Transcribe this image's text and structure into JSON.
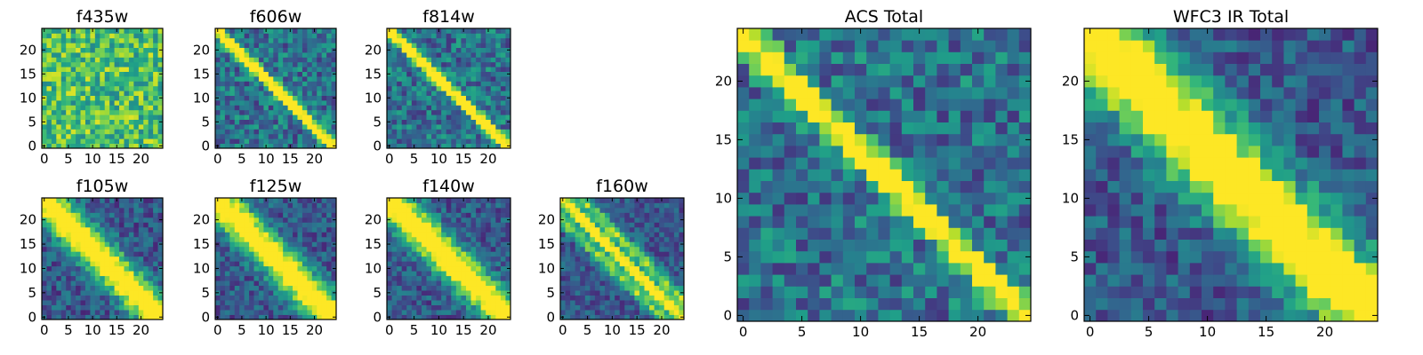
{
  "chart_data": [
    {
      "type": "heatmap",
      "title": "f435w",
      "xticks": [
        0,
        5,
        10,
        15,
        20
      ],
      "yticks": [
        0,
        5,
        10,
        15,
        20
      ],
      "xlim": [
        0,
        25
      ],
      "ylim": [
        0,
        25
      ],
      "colormap": "viridis",
      "pattern": "noise"
    },
    {
      "type": "heatmap",
      "title": "f606w",
      "xticks": [
        0,
        5,
        10,
        15,
        20
      ],
      "yticks": [
        0,
        5,
        10,
        15,
        20
      ],
      "xlim": [
        0,
        25
      ],
      "ylim": [
        0,
        25
      ],
      "colormap": "viridis",
      "pattern": "diagonal-sharp"
    },
    {
      "type": "heatmap",
      "title": "f814w",
      "xticks": [
        0,
        5,
        10,
        15,
        20
      ],
      "yticks": [
        0,
        5,
        10,
        15,
        20
      ],
      "xlim": [
        0,
        25
      ],
      "ylim": [
        0,
        25
      ],
      "colormap": "viridis",
      "pattern": "diagonal-sharp"
    },
    {
      "type": "heatmap",
      "title": "f105w",
      "xticks": [
        0,
        5,
        10,
        15,
        20
      ],
      "yticks": [
        0,
        5,
        10,
        15,
        20
      ],
      "xlim": [
        0,
        25
      ],
      "ylim": [
        0,
        25
      ],
      "colormap": "viridis",
      "pattern": "diagonal-broad"
    },
    {
      "type": "heatmap",
      "title": "f125w",
      "xticks": [
        0,
        5,
        10,
        15,
        20
      ],
      "yticks": [
        0,
        5,
        10,
        15,
        20
      ],
      "xlim": [
        0,
        25
      ],
      "ylim": [
        0,
        25
      ],
      "colormap": "viridis",
      "pattern": "diagonal-broad"
    },
    {
      "type": "heatmap",
      "title": "f140w",
      "xticks": [
        0,
        5,
        10,
        15,
        20
      ],
      "yticks": [
        0,
        5,
        10,
        15,
        20
      ],
      "xlim": [
        0,
        25
      ],
      "ylim": [
        0,
        25
      ],
      "colormap": "viridis",
      "pattern": "diagonal-broad"
    },
    {
      "type": "heatmap",
      "title": "f160w",
      "xticks": [
        0,
        5,
        10,
        15,
        20
      ],
      "yticks": [
        0,
        5,
        10,
        15,
        20
      ],
      "xlim": [
        0,
        25
      ],
      "ylim": [
        0,
        25
      ],
      "colormap": "viridis",
      "pattern": "diagonal-banded"
    },
    {
      "type": "heatmap",
      "title": "ACS Total",
      "xticks": [
        0,
        5,
        10,
        15,
        20
      ],
      "yticks": [
        0,
        5,
        10,
        15,
        20
      ],
      "xlim": [
        0,
        25
      ],
      "ylim": [
        0,
        25
      ],
      "colormap": "viridis",
      "pattern": "diagonal-sharp"
    },
    {
      "type": "heatmap",
      "title": "WFC3 IR Total",
      "xticks": [
        0,
        5,
        10,
        15,
        20
      ],
      "yticks": [
        0,
        5,
        10,
        15,
        20
      ],
      "xlim": [
        0,
        25
      ],
      "ylim": [
        0,
        25
      ],
      "colormap": "viridis",
      "pattern": "diagonal-broad"
    }
  ]
}
